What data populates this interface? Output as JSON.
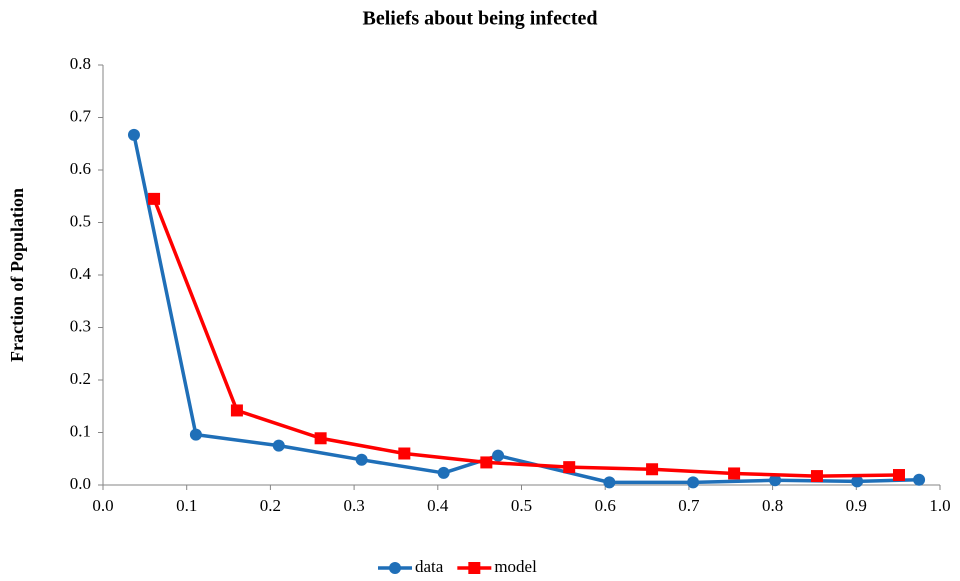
{
  "chart_data": {
    "type": "line",
    "title": "Beliefs about being infected",
    "y_label": "Fraction of Population",
    "series": [
      {
        "name": "data",
        "color": "#1f6fb8",
        "marker": "circle",
        "x": [
          0.037,
          0.111,
          0.21,
          0.309,
          0.407,
          0.472,
          0.605,
          0.705,
          0.803,
          0.901,
          0.975
        ],
        "values": [
          0.667,
          0.096,
          0.075,
          0.048,
          0.023,
          0.056,
          0.005,
          0.005,
          0.009,
          0.007,
          0.01
        ]
      },
      {
        "name": "model",
        "color": "#ff0000",
        "marker": "square",
        "x": [
          0.061,
          0.16,
          0.26,
          0.36,
          0.458,
          0.557,
          0.656,
          0.754,
          0.853,
          0.951
        ],
        "values": [
          0.545,
          0.142,
          0.089,
          0.06,
          0.043,
          0.034,
          0.03,
          0.022,
          0.017,
          0.019
        ]
      }
    ],
    "xlim": [
      0,
      1
    ],
    "xticks": [
      {
        "value": 0,
        "label": "0.0"
      },
      0.1,
      0.2,
      0.3,
      0.4,
      0.5,
      0.6,
      0.7,
      0.8,
      0.9,
      {
        "value": 1,
        "label": "1.0"
      }
    ],
    "ylim": [
      0,
      0.8
    ],
    "yticks": [
      {
        "value": 0,
        "label": "0.0"
      },
      0.1,
      0.2,
      0.3,
      0.4,
      0.5,
      0.6,
      0.7,
      0.8
    ],
    "grid": false,
    "legend": "bottom"
  }
}
